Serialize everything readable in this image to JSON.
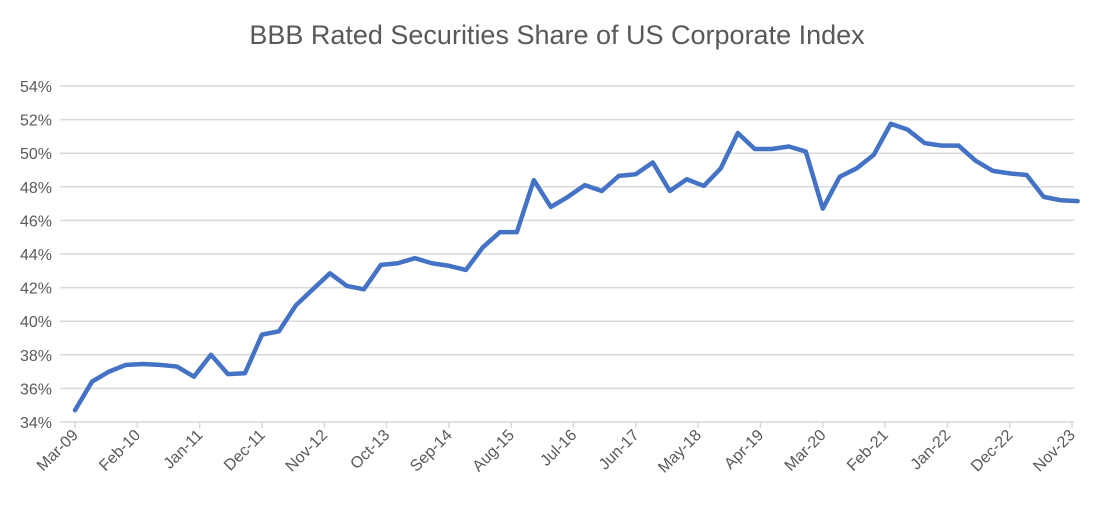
{
  "chart_data": {
    "type": "line",
    "title": "BBB Rated Securities Share of US Corporate Index",
    "xlabel": "",
    "ylabel": "",
    "ylim": [
      34,
      54
    ],
    "y_ticks": [
      "34%",
      "36%",
      "38%",
      "40%",
      "42%",
      "44%",
      "46%",
      "48%",
      "50%",
      "52%",
      "54%"
    ],
    "x_tick_labels": [
      "Mar-09",
      "Feb-10",
      "Jan-11",
      "Dec-11",
      "Nov-12",
      "Oct-13",
      "Sep-14",
      "Aug-15",
      "Jul-16",
      "Jun-17",
      "May-18",
      "Apr-19",
      "Mar-20",
      "Feb-21",
      "Jan-22",
      "Dec-22",
      "Nov-23"
    ],
    "grid": "horizontal",
    "legend": "none",
    "color": "#4472C4",
    "x": [
      "Mar-09",
      "Jun-09",
      "Sep-09",
      "Dec-09",
      "Mar-10",
      "Jun-10",
      "Sep-10",
      "Dec-10",
      "Mar-11",
      "Jun-11",
      "Sep-11",
      "Dec-11",
      "Mar-12",
      "Jun-12",
      "Sep-12",
      "Dec-12",
      "Mar-13",
      "Jun-13",
      "Sep-13",
      "Dec-13",
      "Mar-14",
      "Jun-14",
      "Sep-14",
      "Dec-14",
      "Mar-15",
      "Jun-15",
      "Sep-15",
      "Dec-15",
      "Mar-16",
      "Jun-16",
      "Sep-16",
      "Dec-16",
      "Mar-17",
      "Jun-17",
      "Sep-17",
      "Dec-17",
      "Mar-18",
      "Jun-18",
      "Sep-18",
      "Dec-18",
      "Mar-19",
      "Jun-19",
      "Sep-19",
      "Dec-19",
      "Mar-20",
      "Jun-20",
      "Sep-20",
      "Dec-20",
      "Mar-21",
      "Jun-21",
      "Sep-21",
      "Dec-21",
      "Mar-22",
      "Jun-22",
      "Sep-22",
      "Dec-22",
      "Mar-23",
      "Jun-23",
      "Sep-23",
      "Dec-23"
    ],
    "values": [
      34.7,
      36.4,
      37.0,
      37.4,
      37.45,
      37.4,
      37.3,
      36.7,
      38.0,
      36.85,
      36.9,
      39.2,
      39.4,
      40.95,
      41.9,
      42.85,
      42.1,
      41.9,
      43.35,
      43.45,
      43.75,
      43.45,
      43.3,
      43.05,
      44.4,
      45.3,
      45.3,
      48.4,
      46.8,
      47.4,
      48.1,
      47.75,
      48.65,
      48.75,
      49.45,
      47.75,
      48.45,
      48.05,
      49.1,
      51.2,
      50.25,
      50.25,
      50.4,
      50.1,
      46.7,
      48.6,
      49.1,
      49.9,
      51.75,
      51.4,
      50.6,
      50.45,
      50.45,
      49.55,
      48.95,
      48.8,
      48.7,
      47.4,
      47.2,
      47.15
    ]
  }
}
